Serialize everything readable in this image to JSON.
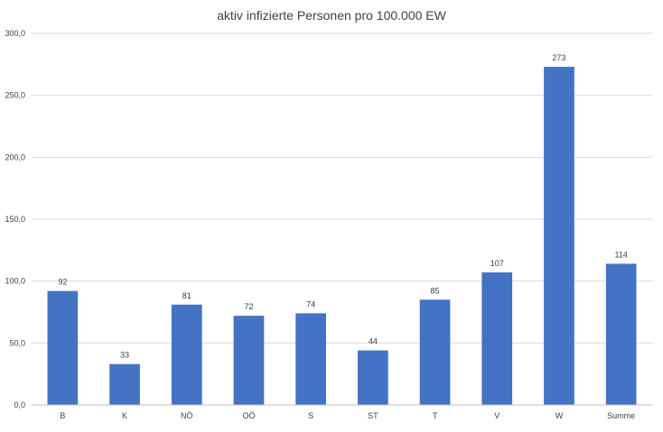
{
  "chart_data": {
    "type": "bar",
    "title": "aktiv infizierte Personen pro 100.000 EW",
    "xlabel": "",
    "ylabel": "",
    "categories": [
      "B",
      "K",
      "NÖ",
      "OÖ",
      "S",
      "ST",
      "T",
      "V",
      "W",
      "Summe"
    ],
    "values": [
      92,
      33,
      81,
      72,
      74,
      44,
      85,
      107,
      273,
      114
    ],
    "data_labels": [
      "92",
      "33",
      "81",
      "72",
      "74",
      "44",
      "85",
      "107",
      "273",
      "114"
    ],
    "ylim": [
      0,
      300
    ],
    "yticks": [
      "0,0",
      "50,0",
      "100,0",
      "150,0",
      "200,0",
      "250,0",
      "300,0"
    ],
    "grid": true,
    "legend": "none",
    "colors": {
      "bar": "#4472C4",
      "grid": "#D9D9D9",
      "text": "#404040"
    }
  }
}
